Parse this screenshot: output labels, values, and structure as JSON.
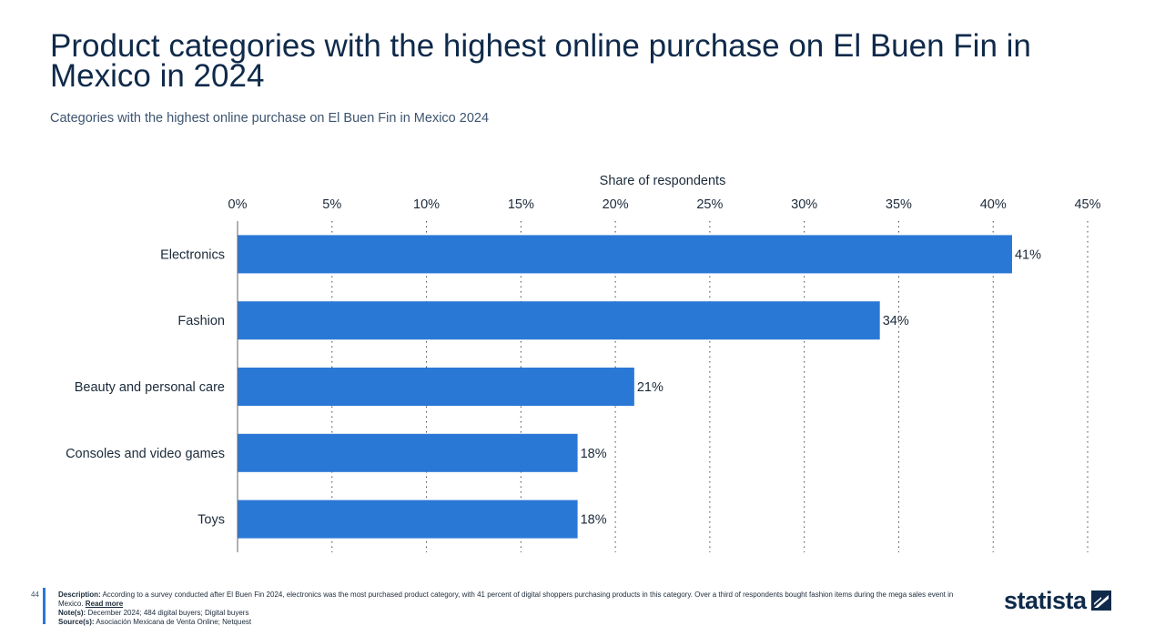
{
  "header": {
    "title": "Product categories with the highest online purchase on El Buen Fin in Mexico in 2024",
    "subtitle": "Categories with the highest online purchase on El Buen Fin in Mexico 2024"
  },
  "chart_data": {
    "type": "bar",
    "orientation": "horizontal",
    "title": "Product categories with the highest online purchase on El Buen Fin in Mexico in 2024",
    "xlabel": "Share of respondents",
    "ylabel": "",
    "categories": [
      "Electronics",
      "Fashion",
      "Beauty and personal care",
      "Consoles and video games",
      "Toys"
    ],
    "values": [
      41,
      34,
      21,
      18,
      18
    ],
    "data_labels": [
      "41%",
      "34%",
      "21%",
      "18%",
      "18%"
    ],
    "xlim": [
      0,
      45
    ],
    "ticks": [
      0,
      5,
      10,
      15,
      20,
      25,
      30,
      35,
      40,
      45
    ],
    "tick_labels": [
      "0%",
      "5%",
      "10%",
      "15%",
      "20%",
      "25%",
      "30%",
      "35%",
      "40%",
      "45%"
    ],
    "axis_position": "top",
    "grid": true,
    "bar_color": "#2a78d6"
  },
  "footer": {
    "page_number": "44",
    "description_label": "Description:",
    "description_text": "According to a survey conducted after El Buen Fin 2024, electronics was the most purchased product category, with 41 percent of digital shoppers purchasing products in this category. Over a third of respondents bought fashion items during the mega sales event in Mexico.",
    "read_more": "Read more",
    "notes_label": "Note(s):",
    "notes_text": "December 2024; 484 digital buyers; Digital buyers",
    "sources_label": "Source(s):",
    "sources_text": "Asociación Mexicana de Venta Online; Netquest"
  },
  "logo": {
    "text": "statista"
  }
}
